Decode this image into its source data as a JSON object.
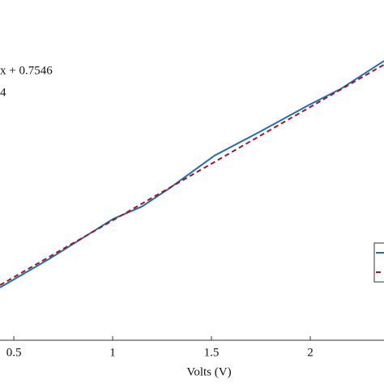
{
  "chart_data": {
    "type": "line",
    "xlabel": "Volts (V)",
    "annotations": [
      "x + 0.7546",
      "4"
    ],
    "x": [
      0.43,
      0.676,
      1.004,
      1.148,
      1.291,
      1.516,
      1.742,
      1.988,
      2.152,
      2.373
    ],
    "series": [
      {
        "color": "#1f6fae",
        "dash": false,
        "values": [
          0.155,
          0.238,
          0.357,
          0.393,
          0.448,
          0.543,
          0.612,
          0.69,
          0.738,
          0.821
        ]
      },
      {
        "color": "#a3132e",
        "dash": true,
        "x": [
          0.43,
          2.373
        ],
        "values": [
          0.162,
          0.81
        ]
      }
    ],
    "xlim": [
      0.43,
      2.373
    ],
    "ylim": [
      0,
      1
    ],
    "xticks": [
      0.5,
      1,
      1.5,
      2
    ]
  }
}
